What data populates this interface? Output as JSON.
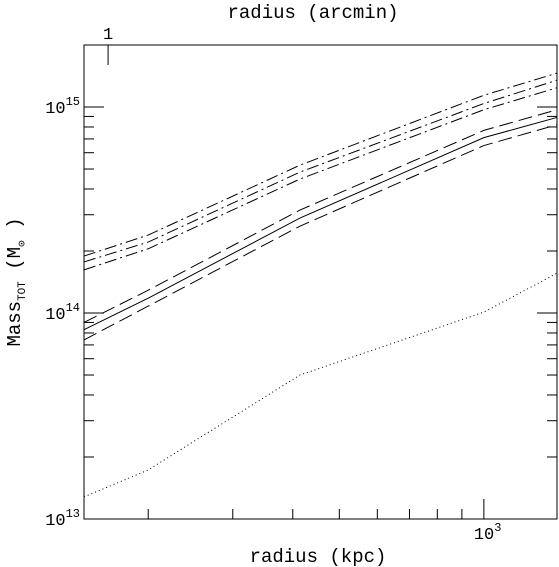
{
  "chart_data": {
    "type": "line",
    "x2label": "radius (arcmin)",
    "xlabel": "radius (kpc)",
    "ylabel": [
      {
        "text": "Mass",
        "sub": "TOT"
      },
      {
        "text": "(M",
        "sub": "⊙"
      },
      {
        "text": ")"
      }
    ],
    "xscale": "log",
    "yscale": "log",
    "xlim": [
      147,
      1420
    ],
    "xticks": [
      {
        "value": 1000,
        "label": "10",
        "exp": "3"
      }
    ],
    "xminorticks": [
      200,
      300,
      400,
      500,
      600,
      700,
      800,
      900
    ],
    "x2lim": [
      0.891,
      8.6
    ],
    "x2ticks": [
      1
    ],
    "ylim": [
      10000000000000.0,
      2000000000000000.0
    ],
    "yticks": [
      {
        "value": 10000000000000.0,
        "label": "10",
        "exp": "13"
      },
      {
        "value": 100000000000000.0,
        "label": "10",
        "exp": "14"
      },
      {
        "value": 1000000000000000.0,
        "label": "10",
        "exp": "15"
      }
    ],
    "yminorticks": [
      20000000000000.0,
      30000000000000.0,
      40000000000000.0,
      50000000000000.0,
      60000000000000.0,
      70000000000000.0,
      80000000000000.0,
      90000000000000.0,
      200000000000000.0,
      300000000000000.0,
      400000000000000.0,
      500000000000000.0,
      600000000000000.0,
      700000000000000.0,
      800000000000000.0,
      900000000000000.0
    ],
    "x": [
      147,
      200,
      414,
      1000,
      1420
    ],
    "series": [
      {
        "color": "#000000",
        "style": "dashdot",
        "values": [
          189000000000000.0,
          239000000000000.0,
          522000000000000.0,
          1140000000000000.0,
          1460000000000000.0
        ]
      },
      {
        "color": "#000000",
        "style": "dashdot",
        "values": [
          177000000000000.0,
          221000000000000.0,
          483000000000000.0,
          1040000000000000.0,
          1350000000000000.0
        ]
      },
      {
        "color": "#000000",
        "style": "dashdot",
        "values": [
          162000000000000.0,
          205000000000000.0,
          447000000000000.0,
          970000000000000.0,
          1240000000000000.0
        ]
      },
      {
        "color": "#000000",
        "style": "dashed",
        "values": [
          90000000000000.0,
          129000000000000.0,
          316000000000000.0,
          770000000000000.0,
          970000000000000.0
        ]
      },
      {
        "color": "#000000",
        "style": "solid",
        "values": [
          83000000000000.0,
          118000000000000.0,
          289000000000000.0,
          710000000000000.0,
          890000000000000.0
        ]
      },
      {
        "color": "#000000",
        "style": "dashed",
        "values": [
          74000000000000.0,
          108000000000000.0,
          264000000000000.0,
          650000000000000.0,
          820000000000000.0
        ]
      },
      {
        "color": "#000000",
        "style": "dotted",
        "values": [
          12800000000000.0,
          17300000000000.0,
          50000000000000.0,
          101000000000000.0,
          156000000000000.0
        ]
      }
    ]
  }
}
